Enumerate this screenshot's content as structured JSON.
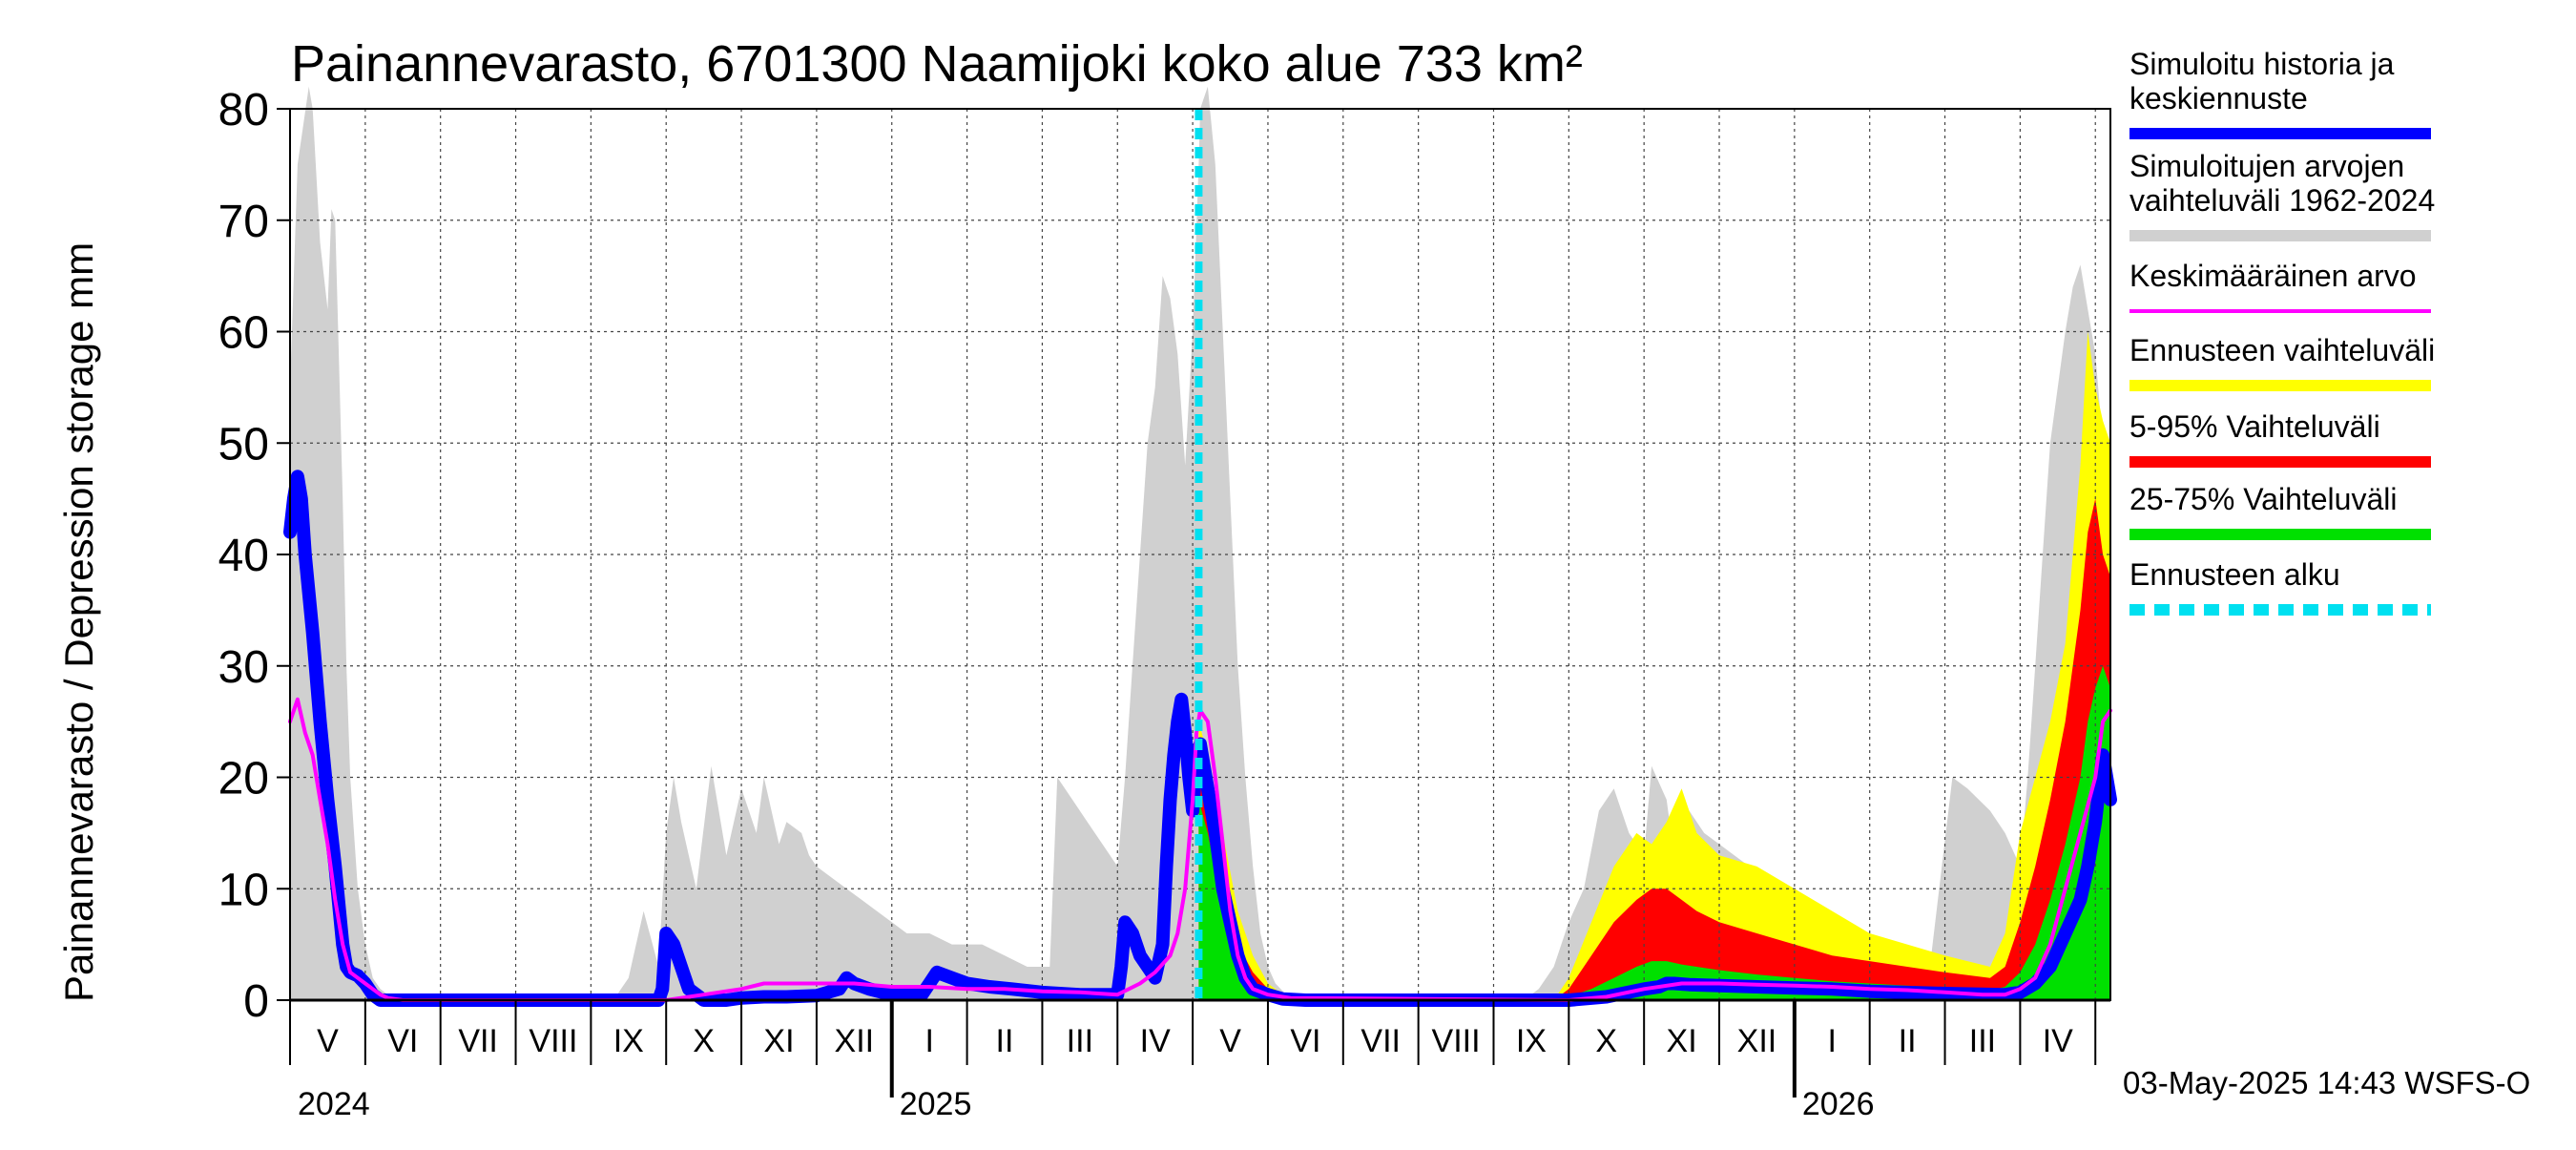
{
  "chart_data": {
    "type": "area",
    "title": "Painannevarasto, 6701300 Naamijoki koko alue 733 km²",
    "ylabel": "Painannevarasto / Depression storage    mm",
    "ylim": [
      0,
      80
    ],
    "yticks": [
      0,
      10,
      20,
      30,
      40,
      50,
      60,
      70,
      80
    ],
    "grid": true,
    "legend_placement": "right",
    "timestamp": "03-May-2025 14:43 WSFS-O",
    "forecast_start": 12.08,
    "x_range": [
      0,
      24.2
    ],
    "month_labels": [
      {
        "label": "V",
        "pos": 0.5
      },
      {
        "label": "VI",
        "pos": 1.5
      },
      {
        "label": "VII",
        "pos": 2.5
      },
      {
        "label": "VIII",
        "pos": 3.5
      },
      {
        "label": "IX",
        "pos": 4.5
      },
      {
        "label": "X",
        "pos": 5.5
      },
      {
        "label": "XI",
        "pos": 6.5
      },
      {
        "label": "XII",
        "pos": 7.5
      },
      {
        "label": "I",
        "pos": 8.5
      },
      {
        "label": "II",
        "pos": 9.5
      },
      {
        "label": "III",
        "pos": 10.5
      },
      {
        "label": "IV",
        "pos": 11.5
      },
      {
        "label": "V",
        "pos": 12.5
      },
      {
        "label": "VI",
        "pos": 13.5
      },
      {
        "label": "VII",
        "pos": 14.5
      },
      {
        "label": "VIII",
        "pos": 15.5
      },
      {
        "label": "IX",
        "pos": 16.5
      },
      {
        "label": "X",
        "pos": 17.5
      },
      {
        "label": "XI",
        "pos": 18.5
      },
      {
        "label": "XII",
        "pos": 19.5
      },
      {
        "label": "I",
        "pos": 20.5
      },
      {
        "label": "II",
        "pos": 21.5
      },
      {
        "label": "III",
        "pos": 22.5
      },
      {
        "label": "IV",
        "pos": 23.5
      }
    ],
    "year_labels": [
      {
        "label": "2024",
        "pos": 0
      },
      {
        "label": "2025",
        "pos": 8
      },
      {
        "label": "2026",
        "pos": 20
      }
    ],
    "year_boundaries": [
      8,
      20
    ],
    "legend": [
      {
        "label": "Simuloitu historia ja keskiennuste",
        "color": "#0000ff",
        "style": "solid"
      },
      {
        "label": "Simuloitujen arvojen vaihteluväli 1962-2024",
        "color": "#d0d0d0",
        "style": "solid"
      },
      {
        "label": "Keskimääräinen arvo",
        "color": "#ff00ff",
        "style": "solid"
      },
      {
        "label": "Ennusteen vaihteluväli",
        "color": "#ffff00",
        "style": "solid"
      },
      {
        "label": "5-95% Vaihteluväli",
        "color": "#ff0000",
        "style": "solid"
      },
      {
        "label": "25-75% Vaihteluväli",
        "color": "#00e000",
        "style": "solid"
      },
      {
        "label": "Ennusteen alku",
        "color": "#00e0f0",
        "style": "dashed"
      }
    ],
    "series": [
      {
        "name": "Simuloitujen arvojen vaihteluväli 1962-2024",
        "kind": "band",
        "color": "#d0d0d0",
        "x": [
          0,
          0.1,
          0.25,
          0.3,
          0.4,
          0.5,
          0.55,
          0.6,
          0.7,
          0.75,
          0.8,
          0.9,
          1.0,
          1.1,
          1.2,
          1.3,
          1.4,
          1.5,
          1.8,
          4.3,
          4.4,
          4.5,
          4.7,
          4.9,
          5.0,
          5.1,
          5.2,
          5.4,
          5.6,
          5.8,
          6.0,
          6.2,
          6.3,
          6.4,
          6.5,
          6.6,
          6.8,
          6.9,
          7.0,
          7.2,
          7.4,
          7.6,
          7.8,
          8.0,
          8.2,
          8.5,
          8.8,
          9.2,
          9.5,
          9.8,
          10.1,
          10.2,
          10.4,
          10.6,
          10.8,
          11.0,
          11.1,
          11.2,
          11.3,
          11.4,
          11.5,
          11.6,
          11.7,
          11.8,
          11.9,
          12.0,
          12.08,
          12.1,
          12.2,
          12.3,
          12.4,
          12.5,
          12.6,
          12.7,
          12.8,
          12.9,
          13.0,
          13.1,
          13.2,
          13.3,
          13.5,
          16.4,
          16.6,
          16.8,
          17.0,
          17.2,
          17.4,
          17.6,
          17.8,
          18.0,
          18.1,
          18.3,
          18.4,
          18.6,
          18.8,
          19.0,
          19.2,
          19.4,
          19.6,
          19.8,
          20.0,
          20.3,
          20.6,
          21.0,
          21.4,
          21.8,
          22.1,
          22.3,
          22.6,
          22.8,
          23.0,
          23.1,
          23.2,
          23.3,
          23.4,
          23.5,
          23.6,
          23.7,
          23.8,
          23.9,
          24.0,
          24.1,
          24.2
        ],
        "y": [
          55,
          75,
          82,
          80,
          68,
          62,
          71,
          70,
          45,
          30,
          20,
          10,
          5,
          2,
          1,
          0.5,
          0.2,
          0.1,
          0,
          0,
          1,
          2,
          8,
          3,
          15,
          20,
          16,
          10,
          21,
          13,
          19,
          15,
          20,
          17,
          14,
          16,
          15,
          13,
          12,
          11,
          10,
          9,
          8,
          7,
          6,
          6,
          5,
          5,
          4,
          3,
          3,
          20,
          18,
          16,
          14,
          12,
          20,
          30,
          40,
          50,
          55,
          65,
          63,
          58,
          48,
          60,
          75,
          80,
          82,
          75,
          60,
          45,
          30,
          20,
          12,
          6,
          3,
          1.5,
          0.8,
          0.3,
          0,
          0,
          1,
          3,
          7,
          10,
          17,
          19,
          15,
          13,
          21,
          18,
          13,
          17,
          15,
          14,
          13,
          12,
          10,
          8,
          7,
          6,
          5,
          4,
          3,
          3,
          20,
          19,
          17,
          15,
          12,
          20,
          30,
          40,
          50,
          55,
          60,
          64,
          66,
          62,
          58,
          50,
          45
        ]
      },
      {
        "name": "Ennusteen vaihteluväli",
        "kind": "band",
        "color": "#ffff00",
        "x": [
          12.08,
          12.2,
          12.4,
          12.6,
          12.8,
          13.0,
          13.2,
          16.8,
          17.0,
          17.3,
          17.6,
          17.9,
          18.1,
          18.3,
          18.5,
          18.7,
          19.0,
          19.5,
          20.0,
          20.5,
          21.0,
          21.5,
          22.0,
          22.6,
          22.8,
          23.0,
          23.2,
          23.4,
          23.6,
          23.8,
          23.9,
          24.0,
          24.1,
          24.2
        ],
        "y": [
          25,
          22,
          15,
          8,
          4,
          1.5,
          0.5,
          0,
          2,
          7,
          12,
          15,
          14,
          16,
          19,
          15,
          13,
          12,
          10,
          8,
          6,
          5,
          4,
          3,
          6,
          15,
          20,
          25,
          32,
          48,
          60,
          55,
          52,
          50
        ]
      },
      {
        "name": "5-95% Vaihteluväli",
        "kind": "band",
        "color": "#ff0000",
        "x": [
          12.08,
          12.2,
          12.4,
          12.6,
          12.8,
          13.0,
          13.2,
          16.8,
          17.0,
          17.3,
          17.6,
          17.9,
          18.1,
          18.3,
          18.5,
          18.7,
          19.0,
          19.5,
          20.0,
          20.5,
          21.0,
          21.5,
          22.0,
          22.6,
          22.8,
          23.0,
          23.2,
          23.4,
          23.6,
          23.8,
          23.9,
          24.0,
          24.1,
          24.2
        ],
        "y": [
          20,
          18,
          11,
          5,
          2.5,
          1,
          0.3,
          0,
          1,
          4,
          7,
          9,
          10,
          10,
          9,
          8,
          7,
          6,
          5,
          4,
          3.5,
          3,
          2.5,
          2,
          3,
          7,
          12,
          18,
          25,
          35,
          42,
          45,
          40,
          38
        ]
      },
      {
        "name": "25-75% Vaihteluväli",
        "kind": "band",
        "color": "#00e000",
        "x": [
          12.08,
          12.2,
          12.4,
          12.6,
          12.8,
          13.0,
          13.2,
          16.8,
          17.0,
          17.3,
          17.6,
          17.9,
          18.1,
          18.3,
          18.5,
          18.7,
          19.0,
          19.5,
          20.0,
          20.5,
          21.0,
          21.5,
          22.0,
          22.6,
          22.8,
          23.0,
          23.2,
          23.4,
          23.6,
          23.8,
          23.9,
          24.0,
          24.1,
          24.2
        ],
        "y": [
          18,
          15,
          8,
          3.5,
          1.5,
          0.5,
          0.1,
          0,
          0.3,
          1,
          2,
          3,
          3.5,
          3.5,
          3.2,
          3,
          2.7,
          2.3,
          2,
          1.7,
          1.5,
          1.3,
          1.1,
          0.9,
          1.2,
          2.5,
          5,
          9,
          14,
          20,
          25,
          28,
          30,
          28
        ]
      },
      {
        "name": "Simuloitu historia ja keskiennuste",
        "kind": "line",
        "color": "#0000ff",
        "x": [
          0,
          0.05,
          0.1,
          0.15,
          0.2,
          0.3,
          0.4,
          0.5,
          0.6,
          0.7,
          0.75,
          0.8,
          0.9,
          1.0,
          1.1,
          1.2,
          1.3,
          1.5,
          4.9,
          4.95,
          5.0,
          5.1,
          5.2,
          5.3,
          5.5,
          5.8,
          6.0,
          6.3,
          6.6,
          7.0,
          7.3,
          7.4,
          7.5,
          7.7,
          8.0,
          8.2,
          8.4,
          8.5,
          8.6,
          8.8,
          9.0,
          9.3,
          9.6,
          10.0,
          10.5,
          11.0,
          11.05,
          11.1,
          11.2,
          11.3,
          11.4,
          11.5,
          11.6,
          11.65,
          11.7,
          11.75,
          11.8,
          11.85,
          11.9,
          11.95,
          12.0,
          12.05,
          12.1,
          12.15,
          12.2,
          12.3,
          12.4,
          12.5,
          12.6,
          12.7,
          12.8,
          13.0,
          13.2,
          13.5,
          17.0,
          17.5,
          18.0,
          18.2,
          18.3,
          18.4,
          18.6,
          19.0,
          19.5,
          20.0,
          20.5,
          21.0,
          22.0,
          22.8,
          23.0,
          23.2,
          23.4,
          23.6,
          23.8,
          23.9,
          24.0,
          24.1,
          24.2
        ],
        "y": [
          42,
          45,
          47,
          45,
          40,
          33,
          25,
          18,
          12,
          5,
          3,
          2.5,
          2.2,
          1.5,
          0.5,
          0,
          0,
          0,
          0,
          1,
          6,
          5,
          3,
          1,
          0,
          0,
          0.2,
          0.3,
          0.3,
          0.4,
          1,
          2,
          1.5,
          1,
          0.5,
          0.5,
          0.5,
          1.5,
          2.5,
          2,
          1.5,
          1.2,
          1,
          0.7,
          0.5,
          0.5,
          3,
          7,
          6,
          4,
          3,
          2,
          5,
          12,
          18,
          22,
          25,
          27,
          24,
          20,
          17,
          22,
          23,
          21,
          19,
          15,
          10,
          7,
          4,
          2,
          1,
          0.5,
          0.1,
          0,
          0,
          0.3,
          1,
          1.2,
          1.5,
          1.5,
          1.4,
          1.3,
          1.2,
          1.1,
          1,
          0.8,
          0.6,
          0.5,
          0.7,
          1.5,
          3,
          6,
          9,
          12,
          16,
          22,
          18
        ]
      },
      {
        "name": "Keskimääräinen arvo",
        "kind": "line",
        "color": "#ff00ff",
        "x": [
          0,
          0.1,
          0.2,
          0.3,
          0.4,
          0.5,
          0.6,
          0.7,
          0.8,
          0.9,
          1.0,
          1.1,
          1.2,
          1.3,
          1.5,
          5.0,
          5.5,
          6.0,
          6.3,
          6.6,
          7.0,
          7.5,
          8.0,
          8.5,
          9.0,
          9.5,
          10.0,
          10.5,
          11.0,
          11.3,
          11.5,
          11.7,
          11.8,
          11.9,
          12.0,
          12.05,
          12.1,
          12.2,
          12.3,
          12.4,
          12.5,
          12.6,
          12.7,
          12.8,
          13.0,
          13.3,
          17.0,
          17.5,
          18.0,
          18.5,
          19.0,
          19.5,
          20.0,
          20.5,
          21.0,
          21.5,
          22.0,
          22.5,
          22.8,
          23.0,
          23.2,
          23.4,
          23.6,
          23.8,
          24.0,
          24.1,
          24.2
        ],
        "y": [
          25,
          27,
          24,
          22,
          18,
          14,
          9,
          5,
          2.5,
          2,
          1.5,
          1,
          0.5,
          0.2,
          0,
          0,
          0.5,
          1,
          1.5,
          1.5,
          1.5,
          1.5,
          1.2,
          1.2,
          1,
          1,
          0.8,
          0.7,
          0.5,
          1.5,
          2.5,
          4,
          6,
          10,
          18,
          24,
          26,
          25,
          20,
          14,
          8,
          4,
          2,
          1,
          0.5,
          0.2,
          0,
          0.3,
          1,
          1.5,
          1.5,
          1.4,
          1.3,
          1.2,
          1,
          0.9,
          0.7,
          0.5,
          0.5,
          1,
          2,
          5,
          10,
          15,
          20,
          25,
          26
        ]
      }
    ]
  }
}
